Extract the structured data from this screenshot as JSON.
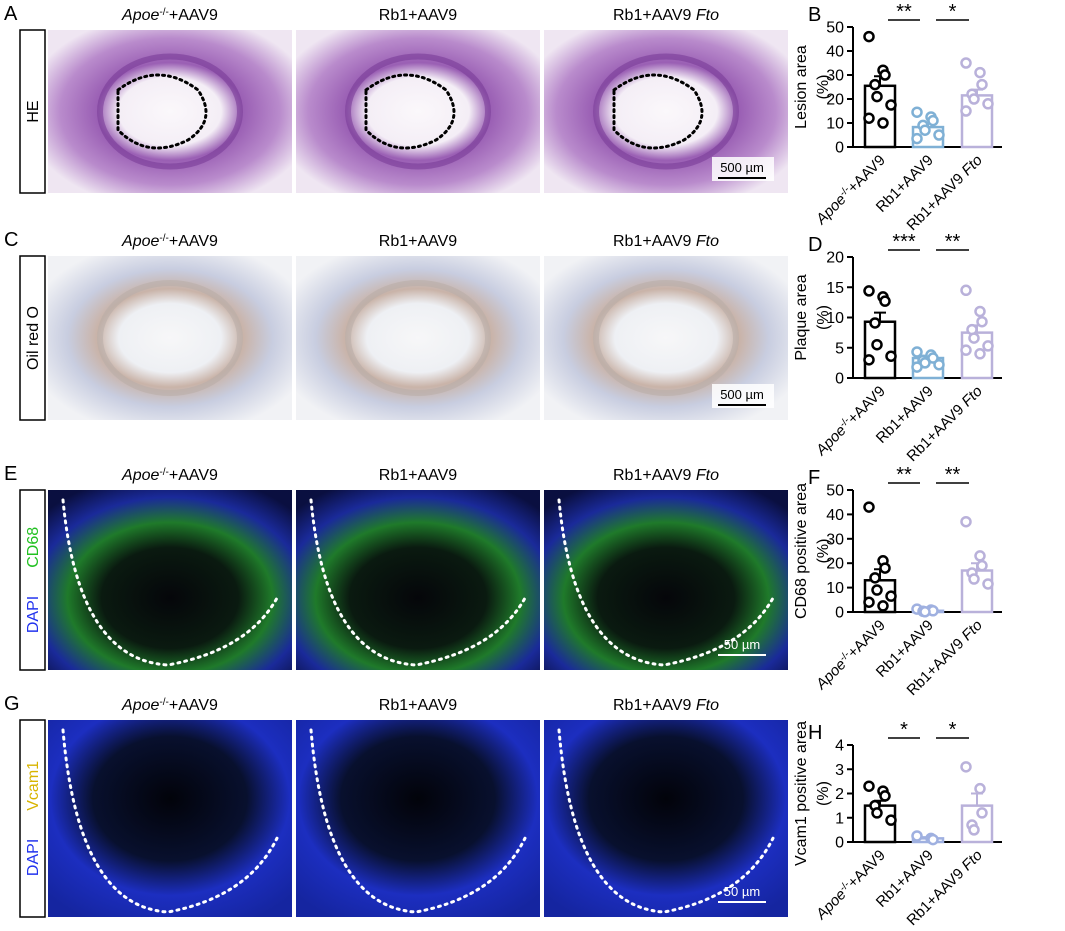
{
  "image_panels": [
    {
      "letter": "A",
      "row_label": [
        {
          "text": "HE",
          "color": "#000000"
        }
      ],
      "columns": [
        [
          {
            "text": "Apoe",
            "style": "italic"
          },
          {
            "text": "-/-",
            "style": "sup"
          },
          {
            "text": "+AAV9"
          }
        ],
        [
          {
            "text": "Rb1+AAV9"
          }
        ],
        [
          {
            "text": "Rb1+AAV9 "
          },
          {
            "text": "Fto",
            "style": "italic"
          }
        ]
      ],
      "scale_bar": "500 µm"
    },
    {
      "letter": "C",
      "row_label": [
        {
          "text": "Oil red O",
          "color": "#000000"
        }
      ],
      "columns": [
        [
          {
            "text": "Apoe",
            "style": "italic"
          },
          {
            "text": "-/-",
            "style": "sup"
          },
          {
            "text": "+AAV9"
          }
        ],
        [
          {
            "text": "Rb1+AAV9"
          }
        ],
        [
          {
            "text": "Rb1+AAV9 "
          },
          {
            "text": "Fto",
            "style": "italic"
          }
        ]
      ],
      "scale_bar": "500 µm"
    },
    {
      "letter": "E",
      "row_label": [
        {
          "text": "DAPI",
          "color": "#2233ee"
        },
        {
          "text": "CD68",
          "color": "#22c022"
        }
      ],
      "columns": [
        [
          {
            "text": "Apoe",
            "style": "italic"
          },
          {
            "text": "-/-",
            "style": "sup"
          },
          {
            "text": "+AAV9"
          }
        ],
        [
          {
            "text": "Rb1+AAV9"
          }
        ],
        [
          {
            "text": "Rb1+AAV9 "
          },
          {
            "text": "Fto",
            "style": "italic"
          }
        ]
      ],
      "scale_bar": "50 µm"
    },
    {
      "letter": "G",
      "row_label": [
        {
          "text": "DAPI",
          "color": "#2233ee"
        },
        {
          "text": "Vcam1",
          "color": "#d8b400"
        }
      ],
      "columns": [
        [
          {
            "text": "Apoe",
            "style": "italic"
          },
          {
            "text": "-/-",
            "style": "sup"
          },
          {
            "text": "+AAV9"
          }
        ],
        [
          {
            "text": "Rb1+AAV9"
          }
        ],
        [
          {
            "text": "Rb1+AAV9 "
          },
          {
            "text": "Fto",
            "style": "italic"
          }
        ]
      ],
      "scale_bar": "50 µm"
    }
  ],
  "chart_data": [
    {
      "type": "bar",
      "letter": "B",
      "ylabel": [
        "Lesion area",
        "(%)"
      ],
      "categories": [
        [
          {
            "text": "Apoe",
            "style": "italic"
          },
          {
            "text": "-/-",
            "style": "sup"
          },
          {
            "text": "+AAV9"
          }
        ],
        [
          {
            "text": "Rb1+AAV9"
          }
        ],
        [
          {
            "text": "Rb1+AAV9 "
          },
          {
            "text": "Fto",
            "style": "italic"
          }
        ]
      ],
      "colors": [
        "#000000",
        "#7fb0d5",
        "#b9b1da"
      ],
      "means": [
        25.5,
        8.3,
        21.5
      ],
      "errors": [
        4,
        1.5,
        2.4
      ],
      "points": [
        [
          46,
          32,
          30,
          26,
          21,
          17.5,
          12,
          10
        ],
        [
          14.5,
          12.5,
          11,
          9,
          7,
          5,
          3.5
        ],
        [
          35,
          31,
          26,
          22,
          20,
          18,
          15
        ]
      ],
      "significance": [
        "**",
        "*"
      ],
      "ylim": [
        0,
        50
      ],
      "yticks": [
        0,
        10,
        20,
        30,
        40,
        50
      ]
    },
    {
      "type": "bar",
      "letter": "D",
      "ylabel": [
        "Plaque area",
        "(%)"
      ],
      "categories": [
        [
          {
            "text": "Apoe",
            "style": "italic"
          },
          {
            "text": "-/-",
            "style": "sup"
          },
          {
            "text": "+AAV9"
          }
        ],
        [
          {
            "text": "Rb1+AAV9"
          }
        ],
        [
          {
            "text": "Rb1+AAV9 "
          },
          {
            "text": "Fto",
            "style": "italic"
          }
        ]
      ],
      "colors": [
        "#000000",
        "#7fb0d5",
        "#b9b1da"
      ],
      "means": [
        9.3,
        3.3,
        7.5
      ],
      "errors": [
        1.5,
        0.4,
        1.2
      ],
      "points": [
        [
          14.4,
          13.4,
          12.7,
          9.1,
          5.5,
          3.6,
          3
        ],
        [
          4.3,
          3.8,
          3.3,
          2.9,
          2.5,
          2.2,
          1.8
        ],
        [
          14.5,
          11,
          9.3,
          8,
          6.6,
          5.3,
          4.6,
          4
        ]
      ],
      "significance": [
        "***",
        "**"
      ],
      "ylim": [
        0,
        20
      ],
      "yticks": [
        0,
        5,
        10,
        15,
        20
      ]
    },
    {
      "type": "bar",
      "letter": "F",
      "ylabel": [
        "CD68 positive area",
        "(%)"
      ],
      "categories": [
        [
          {
            "text": "Apoe",
            "style": "italic"
          },
          {
            "text": "-/-",
            "style": "sup"
          },
          {
            "text": "+AAV9"
          }
        ],
        [
          {
            "text": "Rb1+AAV9"
          }
        ],
        [
          {
            "text": "Rb1+AAV9 "
          },
          {
            "text": "Fto",
            "style": "italic"
          }
        ]
      ],
      "colors": [
        "#000000",
        "#9fb0e0",
        "#b9b1da"
      ],
      "means": [
        13,
        0.5,
        17
      ],
      "errors": [
        4.5,
        0.3,
        3
      ],
      "points": [
        [
          43,
          21,
          18,
          14,
          9,
          6.5,
          4,
          2.5
        ],
        [
          1.2,
          0.8,
          0.5,
          0.3,
          0.1
        ],
        [
          37,
          23,
          19,
          16,
          13.5,
          11.5
        ]
      ],
      "significance": [
        "**",
        "**"
      ],
      "ylim": [
        0,
        50
      ],
      "yticks": [
        0,
        10,
        20,
        30,
        40,
        50
      ]
    },
    {
      "type": "bar",
      "letter": "H",
      "ylabel": [
        "Vcam1 positive area",
        "(%)"
      ],
      "categories": [
        [
          {
            "text": "Apoe",
            "style": "italic"
          },
          {
            "text": "-/-",
            "style": "sup"
          },
          {
            "text": "+AAV9"
          }
        ],
        [
          {
            "text": "Rb1+AAV9"
          }
        ],
        [
          {
            "text": "Rb1+AAV9 "
          },
          {
            "text": "Fto",
            "style": "italic"
          }
        ]
      ],
      "colors": [
        "#000000",
        "#9fb0e0",
        "#b9b1da"
      ],
      "means": [
        1.5,
        0.15,
        1.5
      ],
      "errors": [
        0.2,
        0.05,
        0.5
      ],
      "points": [
        [
          2.3,
          2.1,
          1.9,
          1.5,
          1.2,
          0.9
        ],
        [
          0.25,
          0.15,
          0.1
        ],
        [
          3.1,
          2.2,
          1.2,
          0.7,
          0.5
        ]
      ],
      "significance": [
        "*",
        "*"
      ],
      "ylim": [
        0,
        4
      ],
      "yticks": [
        0,
        1,
        2,
        3,
        4
      ]
    }
  ]
}
